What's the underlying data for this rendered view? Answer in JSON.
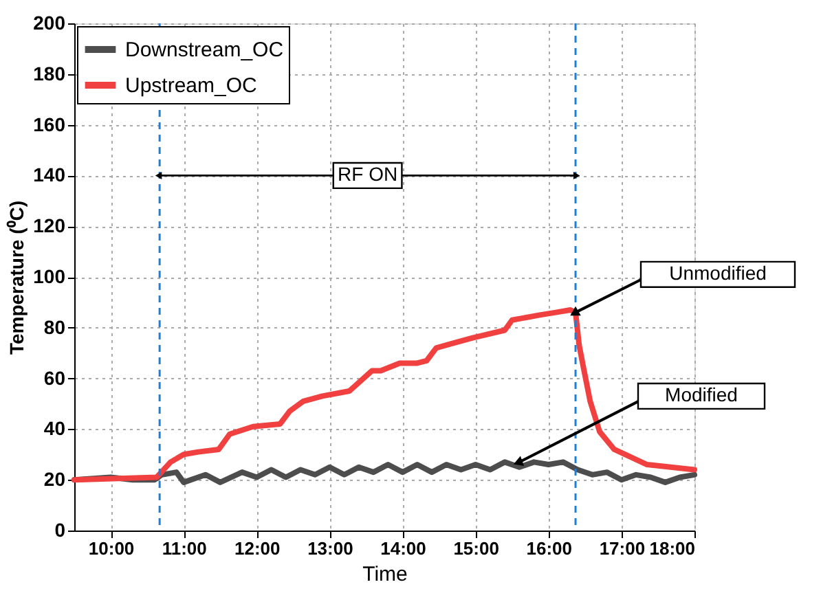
{
  "chart_data": {
    "type": "line",
    "xlabel": "Time",
    "ylabel": "Temperature (⁰C)",
    "xlim": [
      9.5,
      18
    ],
    "ylim": [
      0,
      200
    ],
    "xticks": [
      {
        "value": 10,
        "label": "10:00"
      },
      {
        "value": 11,
        "label": "11:00"
      },
      {
        "value": 12,
        "label": "12:00"
      },
      {
        "value": 13,
        "label": "13:00"
      },
      {
        "value": 14,
        "label": "14:00"
      },
      {
        "value": 15,
        "label": "15:00"
      },
      {
        "value": 16,
        "label": "16:00"
      },
      {
        "value": 17,
        "label": "17:00"
      },
      {
        "value": 18,
        "label": "18:00"
      }
    ],
    "yticks": [
      0,
      20,
      40,
      60,
      80,
      100,
      120,
      140,
      160,
      180,
      200
    ],
    "grid": true,
    "legend": "top left",
    "line_style": "solid",
    "marker": "none",
    "series": [
      {
        "name": "Downstream_OC",
        "color": "#4d4d4d",
        "x": [
          9.5,
          10,
          10.3,
          10.6,
          10.7,
          10.9,
          11.0,
          11.3,
          11.5,
          11.8,
          12.0,
          12.2,
          12.4,
          12.6,
          12.8,
          13.0,
          13.2,
          13.4,
          13.6,
          13.8,
          14.0,
          14.2,
          14.4,
          14.6,
          14.8,
          15.0,
          15.2,
          15.4,
          15.6,
          15.8,
          16.0,
          16.2,
          16.4,
          16.6,
          16.8,
          17.0,
          17.2,
          17.4,
          17.6,
          17.8,
          18
        ],
        "values": [
          20,
          21,
          20,
          20,
          22,
          23,
          19,
          22,
          19,
          23,
          21,
          24,
          21,
          24,
          22,
          25,
          22,
          25,
          23,
          26,
          23,
          26,
          23,
          26,
          24,
          26,
          24,
          27,
          25,
          27,
          26,
          27,
          24,
          22,
          23,
          20,
          22,
          21,
          19,
          21,
          22
        ]
      },
      {
        "name": "Upstream_OC",
        "color": "#f04040",
        "x": [
          9.5,
          10.63,
          10.82,
          11.0,
          11.2,
          11.48,
          11.63,
          11.95,
          12.32,
          12.45,
          12.64,
          12.9,
          13.27,
          13.58,
          13.7,
          13.96,
          14.2,
          14.33,
          14.46,
          14.71,
          14.96,
          15.4,
          15.5,
          15.88,
          16.1,
          16.3,
          16.37,
          16.42,
          16.48,
          16.57,
          16.7,
          16.9,
          17.35,
          18
        ],
        "values": [
          20,
          21,
          27,
          30,
          31,
          32,
          38,
          41,
          42,
          47,
          51,
          53,
          55,
          63,
          63,
          66,
          66,
          67,
          72,
          74,
          76,
          79,
          83,
          85,
          86,
          87,
          86,
          73,
          64,
          51,
          39,
          32,
          26,
          24
        ]
      }
    ],
    "ref_lines": [
      {
        "axis": "x",
        "value": 10.67,
        "color": "#1f7fd6",
        "line_style": "dashed"
      },
      {
        "axis": "x",
        "value": 16.37,
        "color": "#1f7fd6",
        "line_style": "dashed"
      }
    ],
    "annotations": [
      "RF ON",
      {
        "text": "Unmodified",
        "x": 16.37,
        "y": 86
      },
      {
        "text": "Modified",
        "x": 15.6,
        "y": 27
      }
    ]
  }
}
